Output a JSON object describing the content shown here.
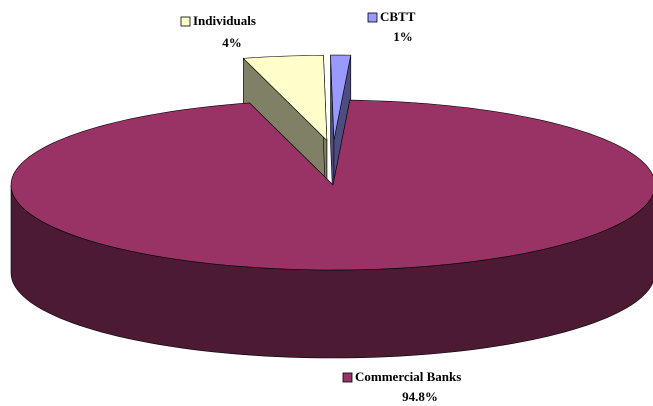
{
  "chart_data": {
    "type": "pie",
    "categories": [
      "Commercial Banks",
      "Individuals",
      "CBTT"
    ],
    "values": [
      94.8,
      4,
      1
    ],
    "value_labels": [
      "94.8%",
      "4%",
      "1%"
    ],
    "colors": [
      "#993366",
      "#ffffcc",
      "#9999ff"
    ]
  }
}
